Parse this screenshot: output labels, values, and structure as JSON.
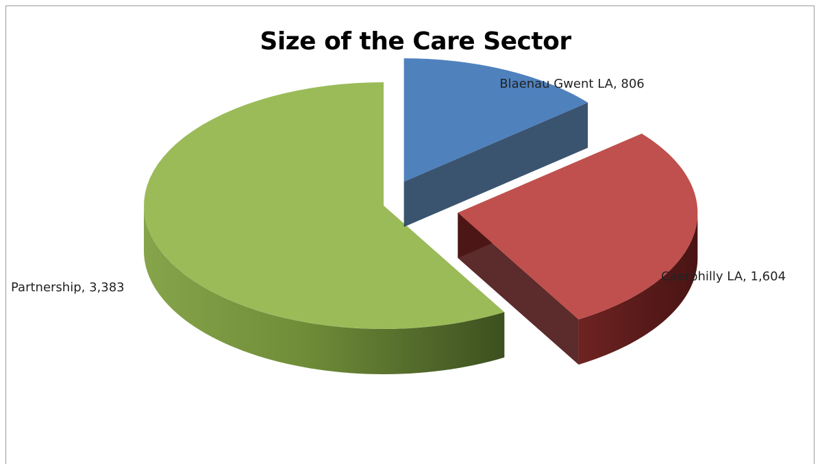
{
  "chart_data": {
    "type": "pie",
    "title": "Size of the Care Sector",
    "slices": [
      {
        "label": "Blaenau Gwent LA",
        "value": 806,
        "display": "806",
        "color": "#4F81BD"
      },
      {
        "label": "Caerphilly LA",
        "value": 1604,
        "display": "1,604",
        "color": "#C0504D"
      },
      {
        "label": "Partnership",
        "value": 3383,
        "display": "3,383",
        "color": "#9BBB59"
      }
    ],
    "style": "3d-exploded"
  }
}
